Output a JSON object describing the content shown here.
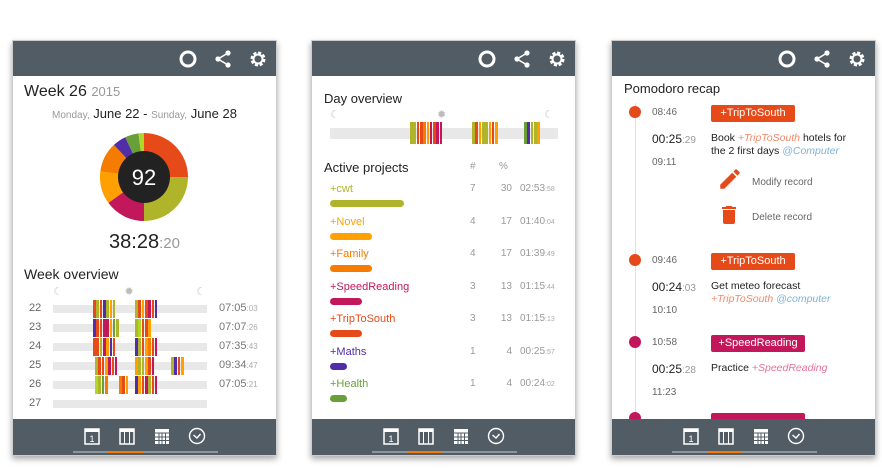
{
  "colors": {
    "O": "#e64a19",
    "Y": "#afb42b",
    "M": "#c2185b",
    "A": "#ffa000",
    "F": "#f57c00",
    "P": "#512da8",
    "G": "#689f38",
    "L": "#aed728",
    "header": "#525c65",
    "accent": "#f57c00"
  },
  "header_icons": [
    "record-icon",
    "share-icon",
    "settings-icon"
  ],
  "footer_tabs": [
    "day-calendar-icon",
    "week-calendar-icon",
    "month-calendar-icon",
    "clock-icon"
  ],
  "screen1": {
    "week_label": "Week 26",
    "year": "2015",
    "range": {
      "start_day": "Monday,",
      "start_date": "June 22",
      "sep": "-",
      "end_day": "Sunday,",
      "end_date": "June 28"
    },
    "donut_count": "92",
    "donut_slices": [
      {
        "color": "O",
        "pct": 25
      },
      {
        "color": "Y",
        "pct": 25
      },
      {
        "color": "M",
        "pct": 15
      },
      {
        "color": "A",
        "pct": 12
      },
      {
        "color": "F",
        "pct": 11
      },
      {
        "color": "P",
        "pct": 5
      },
      {
        "color": "G",
        "pct": 5
      },
      {
        "color": "L",
        "pct": 2
      }
    ],
    "total_main": "38:28",
    "total_sec": ":20",
    "overview_title": "Week overview",
    "rows": [
      {
        "week": "22",
        "main": "07:05",
        "sec": ":03",
        "blocks": [
          "OYOPYAY",
          "YOAOMOP"
        ]
      },
      {
        "week": "23",
        "main": "07:07",
        "sec": ":26",
        "blocks": [
          "POOMMAGY",
          "YLOOA"
        ]
      },
      {
        "week": "24",
        "main": "07:35",
        "sec": ":43",
        "blocks": [
          "OOYMAPO",
          "PYOAFOM"
        ]
      },
      {
        "week": "25",
        "main": "09:34",
        "sec": ":47",
        "blocks": [
          "YOOAMOM",
          "AYYAOM",
          "YPOA"
        ]
      },
      {
        "week": "26",
        "main": "07:05",
        "sec": ":21",
        "blocks": [
          "LYGF",
          "FOA",
          "PAOMYOM"
        ]
      },
      {
        "week": "27",
        "main": "",
        "sec": "",
        "blocks": []
      }
    ]
  },
  "screen2": {
    "day_title": "Day overview",
    "day_blocks": [
      "YYOOFAMOMM",
      "YOAYYAOA",
      "GPYYA"
    ],
    "projects_title": "Active projects",
    "col_count": "#",
    "col_pct": "%",
    "projects": [
      {
        "name": "+cwt",
        "color": "Y",
        "count": "7",
        "pct": "30",
        "main": "02:53",
        "sec": ":58"
      },
      {
        "name": "+Novel",
        "color": "A",
        "count": "4",
        "pct": "17",
        "main": "01:40",
        "sec": ":04"
      },
      {
        "name": "+Family",
        "color": "F",
        "count": "4",
        "pct": "17",
        "main": "01:39",
        "sec": ":49"
      },
      {
        "name": "+SpeedReading",
        "color": "M",
        "count": "3",
        "pct": "13",
        "main": "01:15",
        "sec": ":44"
      },
      {
        "name": "+TripToSouth",
        "color": "O",
        "count": "3",
        "pct": "13",
        "main": "01:15",
        "sec": ":13"
      },
      {
        "name": "+Maths",
        "color": "P",
        "count": "1",
        "pct": "4",
        "main": "00:25",
        "sec": ":57"
      },
      {
        "name": "+Health",
        "color": "G",
        "count": "1",
        "pct": "4",
        "main": "00:24",
        "sec": ":02"
      }
    ]
  },
  "screen3": {
    "title": "Pomodoro recap",
    "modify": "Modify record",
    "delete": "Delete record",
    "records": [
      {
        "start": "08:46",
        "tag": "+TripToSouth",
        "color": "O",
        "dur_main": "00:25",
        "dur_sec": ":29",
        "end": "09:11",
        "text": "Book ",
        "proj": "+TripToSouth",
        "text2": " hotels for the 2 first days ",
        "ctx": "@Computer"
      },
      {
        "start": "09:46",
        "tag": "+TripToSouth",
        "color": "O",
        "dur_main": "00:24",
        "dur_sec": ":03",
        "end": "10:10",
        "text": "Get meteo forecast ",
        "proj": "+TripToSouth",
        "text2": " ",
        "ctx": "@computer"
      },
      {
        "start": "10:58",
        "tag": "+SpeedReading",
        "color": "M",
        "dur_main": "00:25",
        "dur_sec": ":28",
        "end": "11:23",
        "text": "Practice ",
        "proj": "+SpeedReading",
        "text2": "",
        "ctx": ""
      }
    ]
  }
}
